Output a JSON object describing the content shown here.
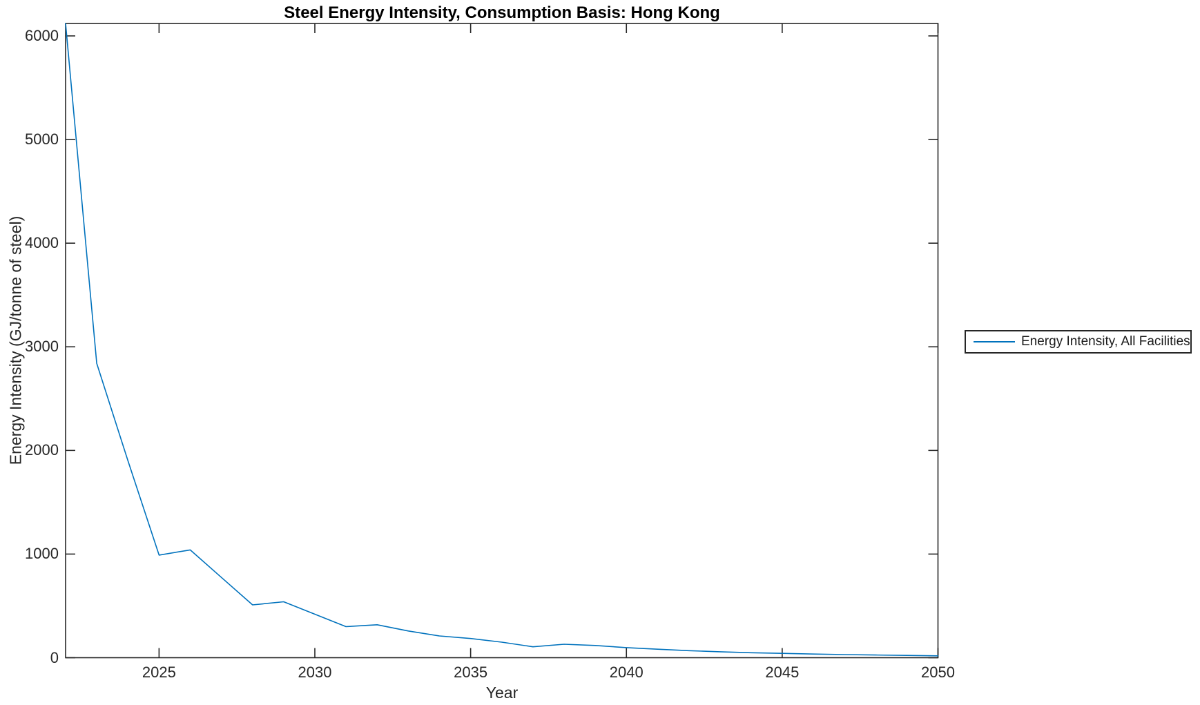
{
  "figure": {
    "title": "Steel Energy Intensity, Consumption Basis: Hong Kong",
    "x_axis_label": "Year",
    "y_axis_label": "Energy Intensity (GJ/tonne of steel)"
  },
  "legend": {
    "entries": [
      {
        "label": "Energy Intensity, All Facilities",
        "color": "#0072BD"
      }
    ],
    "position": "outside-right"
  },
  "colors": {
    "line": "#0072BD",
    "axis": "#262626",
    "title": "#000000",
    "background": "#ffffff"
  },
  "chart_data": {
    "type": "line",
    "title": "Steel Energy Intensity, Consumption Basis: Hong Kong",
    "xlabel": "Year",
    "ylabel": "Energy Intensity (GJ/tonne of steel)",
    "x": [
      2022,
      2023,
      2024,
      2025,
      2026,
      2027,
      2028,
      2029,
      2030,
      2031,
      2032,
      2033,
      2034,
      2035,
      2036,
      2037,
      2038,
      2039,
      2040,
      2041,
      2042,
      2043,
      2044,
      2045,
      2046,
      2047,
      2048,
      2049,
      2050
    ],
    "series": [
      {
        "name": "Energy Intensity, All Facilities",
        "color": "#0072BD",
        "values": [
          6120,
          2840,
          1900,
          990,
          1040,
          775,
          510,
          540,
          420,
          300,
          318,
          258,
          210,
          185,
          150,
          105,
          130,
          118,
          97,
          82,
          68,
          57,
          48,
          42,
          35,
          30,
          26,
          22,
          18
        ]
      }
    ],
    "xlim": [
      2022,
      2050
    ],
    "ylim": [
      0,
      6120
    ],
    "xticks": [
      2025,
      2030,
      2035,
      2040,
      2045,
      2050
    ],
    "yticks": [
      0,
      1000,
      2000,
      3000,
      4000,
      5000,
      6000
    ],
    "grid": false,
    "box": true,
    "tick_direction": "in",
    "legend_position": "outside-right"
  }
}
